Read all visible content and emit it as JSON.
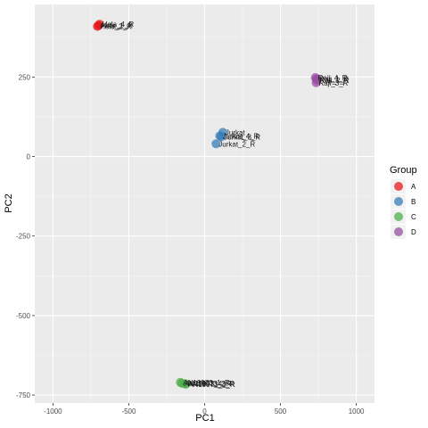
{
  "chart_data": {
    "type": "scatter",
    "xlabel": "PC1",
    "ylabel": "PC2",
    "xlim": [
      -1120,
      1120
    ],
    "ylim": [
      -775,
      478
    ],
    "x_ticks": [
      -1000,
      -500,
      0,
      500,
      1000
    ],
    "x_tick_labels": [
      "-1000",
      "-500",
      "0",
      "500",
      "1000"
    ],
    "y_ticks": [
      -750,
      -500,
      -250,
      0,
      250
    ],
    "y_tick_labels": [
      "-750",
      "-500",
      "-250",
      "0",
      "250"
    ],
    "grid": true,
    "legend": {
      "title": "Group",
      "placement": "right"
    },
    "series": [
      {
        "name": "A",
        "color": "#E41A1C",
        "points": [
          {
            "x": -700,
            "y": 412,
            "label": "Hela_1_R"
          },
          {
            "x": -693,
            "y": 416,
            "label": "Hela_4_R"
          },
          {
            "x": -707,
            "y": 409,
            "label": "Hela_2_R"
          }
        ]
      },
      {
        "name": "B",
        "color": "#377EB8",
        "points": [
          {
            "x": 120,
            "y": 76,
            "label": "Jurkat"
          },
          {
            "x": 100,
            "y": 65,
            "label": "Jurkat_4_R"
          },
          {
            "x": 110,
            "y": 62,
            "label": "Jurkat_3_R"
          },
          {
            "x": 75,
            "y": 40,
            "label": "Jurkat_2_R"
          }
        ]
      },
      {
        "name": "C",
        "color": "#4DAF4A",
        "points": [
          {
            "x": -160,
            "y": -710,
            "label": "AN19973_1_R"
          },
          {
            "x": -150,
            "y": -713,
            "label": "AN19973_4_R"
          },
          {
            "x": -130,
            "y": -714,
            "label": "AN19973_2_R"
          },
          {
            "x": -125,
            "y": -716,
            "label": "AN19973_3_R"
          }
        ]
      },
      {
        "name": "D",
        "color": "#984EA3",
        "points": [
          {
            "x": 730,
            "y": 248,
            "label": "Raji_4_R"
          },
          {
            "x": 738,
            "y": 244,
            "label": "Raji_1_R"
          },
          {
            "x": 742,
            "y": 240,
            "label": "Raji_2_R"
          },
          {
            "x": 735,
            "y": 232,
            "label": "Raji_3_R"
          }
        ]
      }
    ]
  }
}
